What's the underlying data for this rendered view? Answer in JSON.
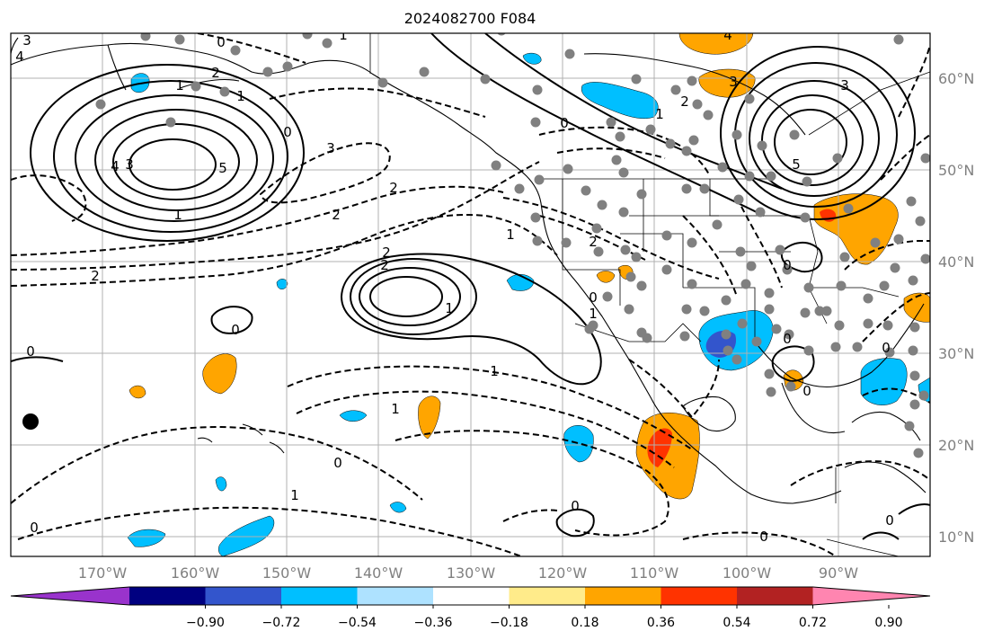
{
  "title": "2024082700 F084",
  "lon_labels": [
    "170°W",
    "160°W",
    "150°W",
    "140°W",
    "130°W",
    "120°W",
    "110°W",
    "100°W",
    "90°W"
  ],
  "lat_labels": [
    "60°N",
    "50°N",
    "40°N",
    "30°N",
    "20°N",
    "10°N"
  ],
  "colorbar": {
    "ticks": [
      "−0.90",
      "−0.72",
      "−0.54",
      "−0.36",
      "−0.18",
      "0.18",
      "0.36",
      "0.54",
      "0.72",
      "0.90"
    ],
    "colors": [
      "#9933cc",
      "#000080",
      "#3355cc",
      "#00bfff",
      "#aee2ff",
      "#ffffff",
      "#ffeb8a",
      "#ffa500",
      "#ff3300",
      "#b22222",
      "#ff85b0"
    ]
  },
  "contour_labels": [
    "3",
    "4",
    "0",
    "1",
    "1",
    "4",
    "3",
    "5",
    "2",
    "1",
    "0",
    "3",
    "2",
    "2",
    "1",
    "2",
    "2",
    "2",
    "1",
    "0",
    "1",
    "0",
    "0",
    "1",
    "0",
    "1",
    "0",
    "0",
    "1",
    "3",
    "2",
    "4",
    "5",
    "3",
    "0",
    "1",
    "0",
    "0",
    "0",
    "0",
    "0",
    "2",
    "1",
    "0"
  ],
  "shading_colors": {
    "light_blue": "#aee2ff",
    "blue": "#00bfff",
    "dark_blue": "#3355cc",
    "yellow": "#ffeb8a",
    "orange": "#ffa500",
    "red": "#ff3300"
  },
  "marker_color": "#808080"
}
